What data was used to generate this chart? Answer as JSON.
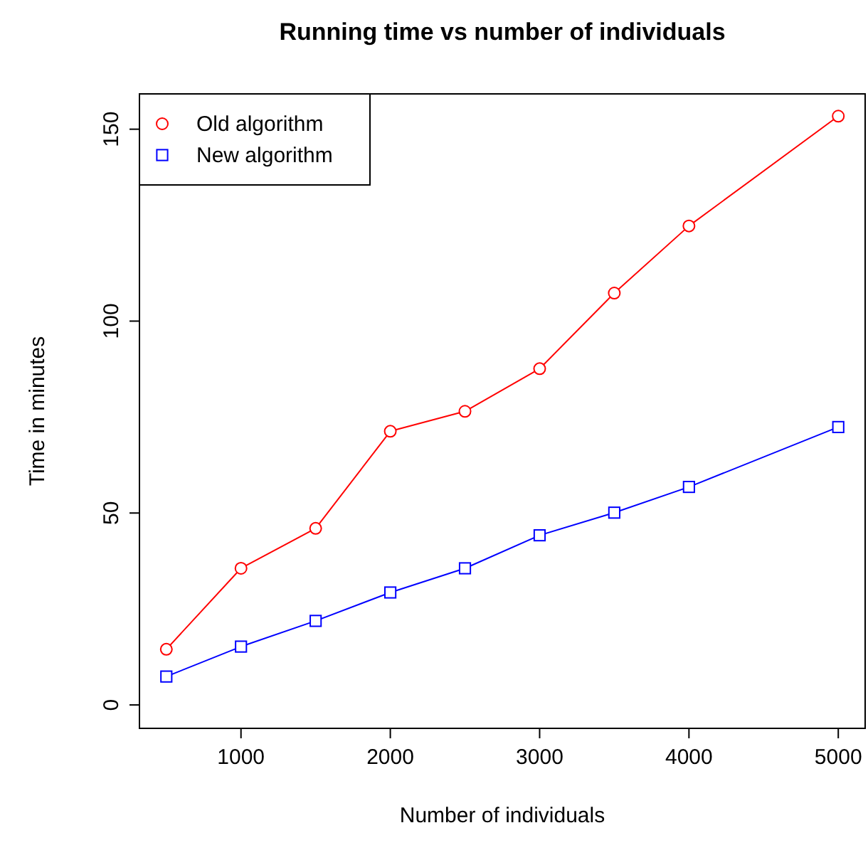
{
  "chart_data": {
    "type": "line",
    "title": "Running time vs number of individuals",
    "xlabel": "Number of individuals",
    "ylabel": "Time in minutes",
    "x": [
      500,
      1000,
      1500,
      2000,
      2500,
      3000,
      3500,
      4000,
      5000
    ],
    "series": [
      {
        "name": "Old algorithm",
        "color": "#ff0000",
        "marker": "circle",
        "values": [
          14.5,
          35.6,
          46,
          71.3,
          76.5,
          87.6,
          107.3,
          124.8,
          153.4
        ]
      },
      {
        "name": "New algorithm",
        "color": "#0000ff",
        "marker": "square",
        "values": [
          7.4,
          15.2,
          21.9,
          29.3,
          35.6,
          44.2,
          50.1,
          56.8,
          72.4
        ]
      }
    ],
    "xlim": [
      320,
      5180
    ],
    "ylim": [
      -6.1,
      159.2
    ],
    "xticks": [
      1000,
      2000,
      3000,
      4000,
      5000
    ],
    "yticks": [
      0,
      50,
      100,
      150
    ],
    "grid": false,
    "legend": "top left",
    "line_style": "solid"
  }
}
